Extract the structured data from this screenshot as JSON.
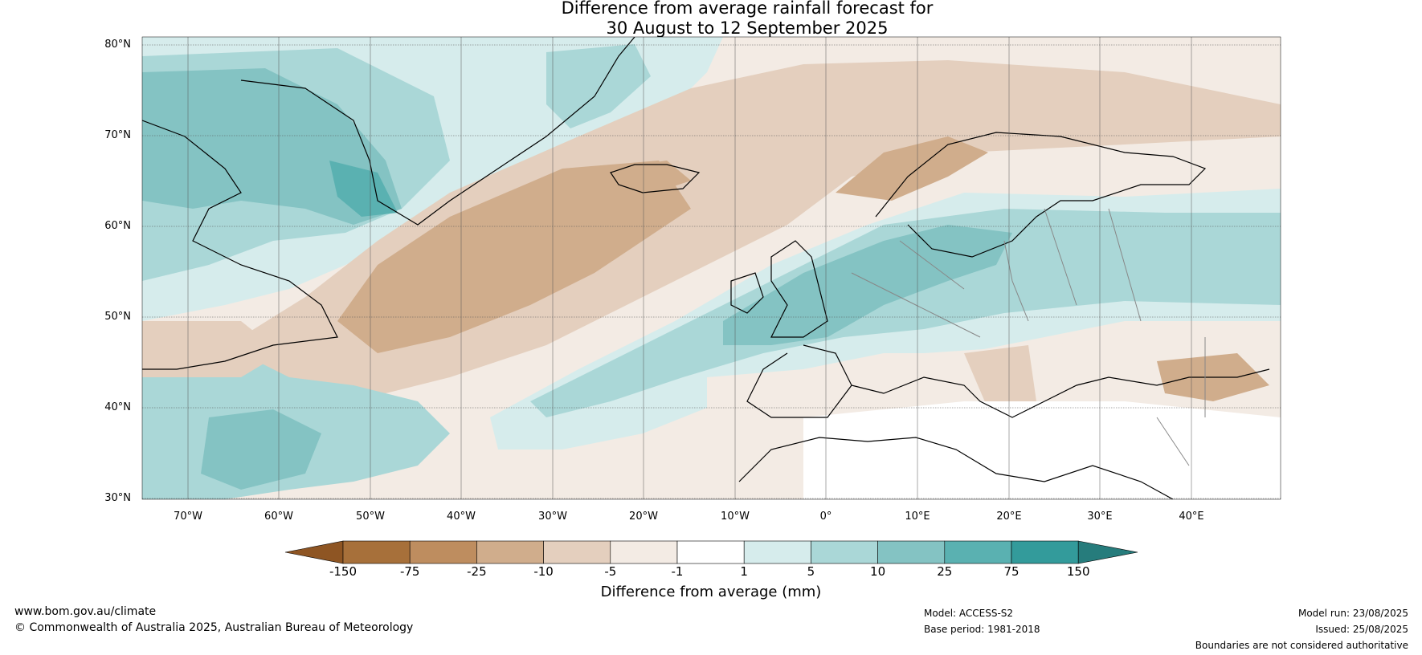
{
  "title_line1": "Difference from average rainfall forecast for",
  "title_line2": "30 August to 12 September 2025",
  "lat_labels": [
    "80°N",
    "70°N",
    "60°N",
    "50°N",
    "40°N",
    "30°N"
  ],
  "lon_labels": [
    "70°W",
    "60°W",
    "50°W",
    "40°W",
    "30°W",
    "20°W",
    "10°W",
    "0°",
    "10°E",
    "20°E",
    "30°E",
    "40°E"
  ],
  "colorbar": {
    "ticks": [
      "-150",
      "-75",
      "-25",
      "-10",
      "-5",
      "-1",
      "1",
      "5",
      "10",
      "25",
      "75",
      "150"
    ],
    "colors": [
      "#a7703a",
      "#be8d5f",
      "#d0ad8c",
      "#e4cfbe",
      "#f3ebe4",
      "#ffffff",
      "#d6ecec",
      "#aad7d7",
      "#84c3c3",
      "#5ab1b1",
      "#339b9b",
      "#267c7c"
    ],
    "label": "Difference from average (mm)"
  },
  "footer": {
    "website": "www.bom.gov.au/climate",
    "copyright": "© Commonwealth of Australia 2025, Australian Bureau of Meteorology",
    "model": "Model: ACCESS-S2",
    "base_period": "Base period: 1981-2018",
    "model_run": "Model run: 23/08/2025",
    "issued": "Issued: 25/08/2025",
    "boundaries": "Boundaries are not considered authoritative"
  }
}
